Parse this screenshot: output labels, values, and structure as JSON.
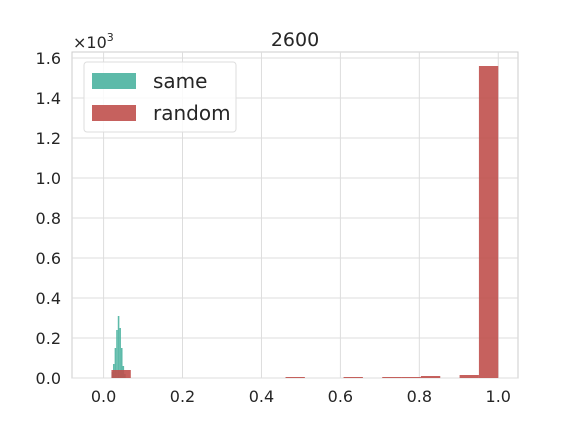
{
  "chart_data": {
    "type": "bar",
    "title": "2600",
    "y_multiplier_label": "×10",
    "y_multiplier_exponent": "3",
    "xlim": [
      -0.08,
      1.05
    ],
    "ylim": [
      0,
      1.63
    ],
    "x_ticks": [
      0.0,
      0.2,
      0.4,
      0.6,
      0.8,
      1.0
    ],
    "x_tick_labels": [
      "0.0",
      "0.2",
      "0.4",
      "0.6",
      "0.8",
      "1.0"
    ],
    "y_ticks": [
      0.0,
      0.2,
      0.4,
      0.6,
      0.8,
      1.0,
      1.2,
      1.4,
      1.6
    ],
    "y_tick_labels": [
      "0.0",
      "0.2",
      "0.4",
      "0.6",
      "0.8",
      "1.0",
      "1.2",
      "1.4",
      "1.6"
    ],
    "grid": true,
    "legend_position": "top-left",
    "series": [
      {
        "name": "same",
        "color": "#4bb3a0",
        "bins": [
          {
            "x0": 0.02,
            "x1": 0.024,
            "y": 0.03
          },
          {
            "x0": 0.024,
            "x1": 0.028,
            "y": 0.07
          },
          {
            "x0": 0.028,
            "x1": 0.032,
            "y": 0.15
          },
          {
            "x0": 0.032,
            "x1": 0.036,
            "y": 0.24
          },
          {
            "x0": 0.036,
            "x1": 0.04,
            "y": 0.31
          },
          {
            "x0": 0.04,
            "x1": 0.044,
            "y": 0.25
          },
          {
            "x0": 0.044,
            "x1": 0.048,
            "y": 0.15
          },
          {
            "x0": 0.048,
            "x1": 0.052,
            "y": 0.06
          },
          {
            "x0": 0.052,
            "x1": 0.056,
            "y": 0.02
          }
        ]
      },
      {
        "name": "random",
        "color": "#c0504d",
        "bins": [
          {
            "x0": 0.02,
            "x1": 0.069,
            "y": 0.04
          },
          {
            "x0": 0.461,
            "x1": 0.51,
            "y": 0.005
          },
          {
            "x0": 0.608,
            "x1": 0.657,
            "y": 0.005
          },
          {
            "x0": 0.706,
            "x1": 0.755,
            "y": 0.005
          },
          {
            "x0": 0.755,
            "x1": 0.804,
            "y": 0.005
          },
          {
            "x0": 0.804,
            "x1": 0.853,
            "y": 0.01
          },
          {
            "x0": 0.902,
            "x1": 0.951,
            "y": 0.015
          },
          {
            "x0": 0.951,
            "x1": 1.0,
            "y": 1.56
          }
        ]
      }
    ]
  }
}
